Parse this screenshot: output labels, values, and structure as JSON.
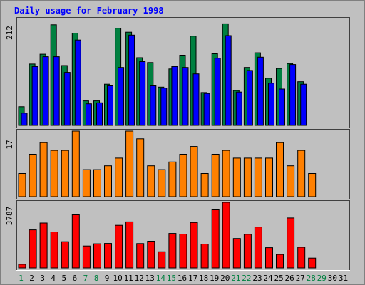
{
  "chart_data": {
    "type": "bar",
    "title": "Daily usage for February 1998",
    "x": [
      "1",
      "2",
      "3",
      "4",
      "5",
      "6",
      "7",
      "8",
      "9",
      "10",
      "11",
      "12",
      "13",
      "14",
      "15",
      "16",
      "17",
      "18",
      "19",
      "20",
      "21",
      "22",
      "23",
      "24",
      "25",
      "26",
      "27",
      "28",
      "29",
      "30",
      "31"
    ],
    "weekend_days": [
      "1",
      "7",
      "8",
      "14",
      "15",
      "21",
      "22",
      "28",
      "29"
    ],
    "panels": [
      {
        "id": "hits",
        "y_max_label": "212",
        "ylim": [
          0,
          212
        ],
        "series": [
          {
            "color": "#008040",
            "values": [
              38,
              125,
              145,
              205,
              122,
              188,
              50,
              50,
              84,
              198,
              190,
              138,
              128,
              78,
              115,
              143,
              182,
              67,
              146,
              207,
              71,
              118,
              148,
              96,
              116,
              126,
              89,
              0,
              0,
              0,
              0
            ]
          },
          {
            "color": "#0000ff",
            "values": [
              25,
              120,
              140,
              140,
              108,
              174,
              44,
              46,
              82,
              118,
              184,
              130,
              82,
              76,
              120,
              118,
              105,
              65,
              137,
              183,
              68,
              112,
              139,
              86,
              74,
              124,
              84,
              0,
              0,
              0,
              0
            ]
          }
        ]
      },
      {
        "id": "sites",
        "y_max_label": "17",
        "ylim": [
          0,
          17
        ],
        "series": [
          {
            "color": "#ff8000",
            "values": [
              6,
              11,
              14,
              12,
              12,
              17,
              7,
              7,
              8,
              10,
              17,
              15,
              8,
              7,
              9,
              11,
              13,
              6,
              11,
              12,
              10,
              10,
              10,
              10,
              14,
              8,
              12,
              6,
              0,
              0,
              0
            ]
          }
        ]
      },
      {
        "id": "kbytes",
        "y_max_label": "3787",
        "ylim": [
          0,
          3787
        ],
        "series": [
          {
            "color": "#ff0000",
            "values": [
              208,
              2197,
              2592,
              2078,
              1513,
              3068,
              1268,
              1394,
              1415,
              2463,
              2661,
              1407,
              1542,
              933,
              1992,
              1957,
              2621,
              1378,
              3354,
              3787,
              1698,
              1943,
              2363,
              1169,
              780,
              2886,
              1194,
              570,
              0,
              0,
              0
            ]
          }
        ]
      }
    ],
    "colors": {
      "background": "#c0c0c0",
      "frame_border": "#808080",
      "title": "#0000ff",
      "weekday_label": "#000000",
      "weekend_label": "#008040",
      "axis_label": "#000000",
      "bar_outline": "#000000"
    }
  }
}
